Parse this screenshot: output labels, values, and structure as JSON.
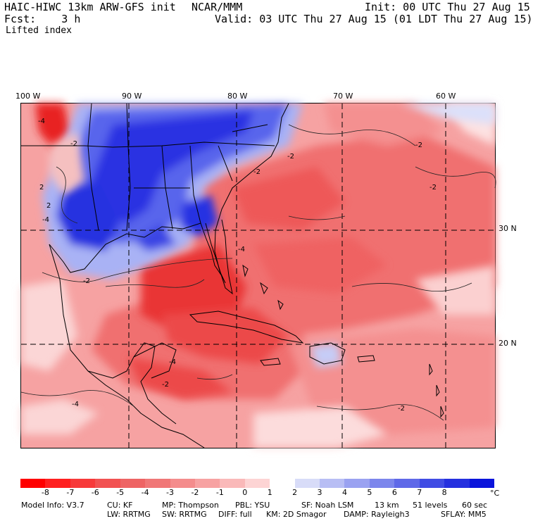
{
  "header": {
    "model_title": "HAIC-HIWC 13km ARW-GFS init",
    "org": "NCAR/MMM",
    "init": "Init: 00 UTC Thu 27 Aug 15",
    "fcst": "Fcst:    3 h",
    "valid": "Valid: 03 UTC Thu 27 Aug 15 (01 LDT Thu 27 Aug 15)",
    "field": "Lifted index"
  },
  "map": {
    "lon_labels": [
      "100 W",
      "90 W",
      "80 W",
      "70 W",
      "60 W"
    ],
    "lat_labels": [
      "30 N",
      "20 N"
    ],
    "contour_labels": [
      "-4",
      "-2",
      "2",
      "-4",
      "2",
      "-2",
      "-2",
      "-2",
      "-2",
      "-4",
      "-2",
      "-4",
      "-2",
      "-2",
      "-4"
    ],
    "colors": {
      "strong_red": "#e8202a",
      "mid_red": "#f06264",
      "light_red": "#f8a3a3",
      "pale": "#fde0de",
      "strong_blue": "#1f1fe0",
      "mid_blue": "#4e59ee",
      "light_blue": "#a7b0f6"
    }
  },
  "colorbar": {
    "ticks": [
      "-8",
      "-7",
      "-6",
      "-5",
      "-4",
      "-3",
      "-2",
      "-1",
      "0",
      "1",
      "2",
      "3",
      "4",
      "5",
      "6",
      "7",
      "8"
    ],
    "unit": "°C",
    "colors": [
      "#ff0000",
      "#ff2020",
      "#f73a3a",
      "#f25252",
      "#ee6464",
      "#f07777",
      "#f48c8c",
      "#f7a2a2",
      "#fab9b9",
      "#fdd4d4",
      "#ffffff",
      "#d8dcf8",
      "#b8bef4",
      "#9aa2f1",
      "#7c86ec",
      "#5f69e8",
      "#404ce4",
      "#2530df",
      "#0a14db"
    ]
  },
  "footer": {
    "line1": [
      "Model Info: V3.7",
      "CU: KF",
      "MP: Thompson",
      "PBL: YSU",
      "SF: Noah LSM",
      "13 km",
      "51 levels",
      "60 sec"
    ],
    "line2": [
      "LW: RRTMG",
      "SW: RRTMG",
      "DIFF: full",
      "KM: 2D Smagor",
      "DAMP: Rayleigh3",
      "SFLAY: MM5"
    ]
  }
}
